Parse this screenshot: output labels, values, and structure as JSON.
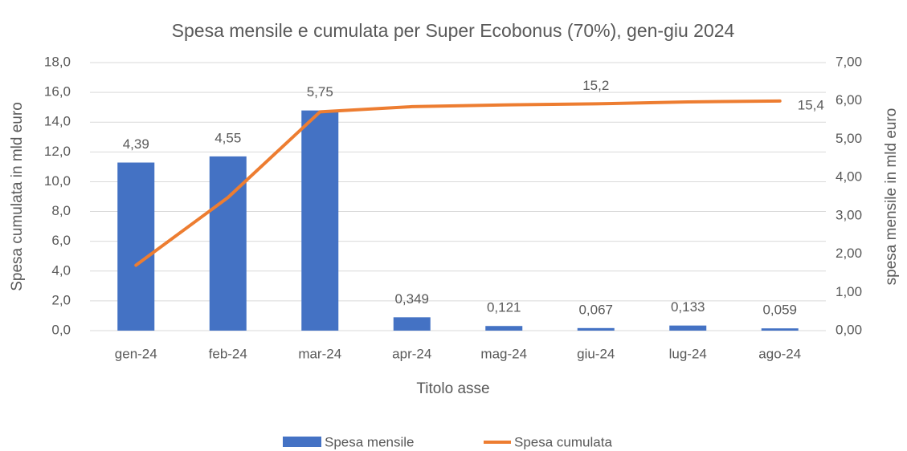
{
  "chart_data": {
    "type": "combo",
    "title": "Spesa mensile e cumulata per Super Ecobonus (70%), gen-giu 2024",
    "x_label": "Titolo asse",
    "y_label": "Spesa cumulata in mld euro",
    "y2_label": "spesa mensile in mld euro",
    "categories": [
      "gen-24",
      "feb-24",
      "mar-24",
      "apr-24",
      "mag-24",
      "giu-24",
      "lug-24",
      "ago-24"
    ],
    "series": [
      {
        "name": "Spesa mensile",
        "type": "bar",
        "axis": "y2",
        "color": "#4472c4",
        "values": [
          4.39,
          4.55,
          5.75,
          0.349,
          0.121,
          0.067,
          0.133,
          0.059
        ],
        "value_labels": [
          "4,39",
          "4,55",
          "5,75",
          "0,349",
          "0,121",
          "0,067",
          "0,133",
          "0,059"
        ]
      },
      {
        "name": "Spesa cumulata",
        "type": "line",
        "axis": "y",
        "color": "#ed7d31",
        "values": [
          4.39,
          8.94,
          14.69,
          15.04,
          15.16,
          15.23,
          15.36,
          15.42
        ],
        "value_labels": [
          null,
          null,
          null,
          null,
          null,
          "15,2",
          null,
          "15,4"
        ]
      }
    ],
    "ylim": [
      0,
      18
    ],
    "yticks": [
      {
        "value": 0,
        "label": "0,0"
      },
      {
        "value": 2,
        "label": "2,0"
      },
      {
        "value": 4,
        "label": "4,0"
      },
      {
        "value": 6,
        "label": "6,0"
      },
      {
        "value": 8,
        "label": "8,0"
      },
      {
        "value": 10,
        "label": "10,0"
      },
      {
        "value": 12,
        "label": "12,0"
      },
      {
        "value": 14,
        "label": "14,0"
      },
      {
        "value": 16,
        "label": "16,0"
      },
      {
        "value": 18,
        "label": "18,0"
      }
    ],
    "y2lim": [
      0,
      7
    ],
    "y2ticks": [
      {
        "value": 0,
        "label": "0,00"
      },
      {
        "value": 1,
        "label": "1,00"
      },
      {
        "value": 2,
        "label": "2,00"
      },
      {
        "value": 3,
        "label": "3,00"
      },
      {
        "value": 4,
        "label": "4,00"
      },
      {
        "value": 5,
        "label": "5,00"
      },
      {
        "value": 6,
        "label": "6,00"
      },
      {
        "value": 7,
        "label": "7,00"
      }
    ],
    "grid": true,
    "legend": "bottom"
  }
}
